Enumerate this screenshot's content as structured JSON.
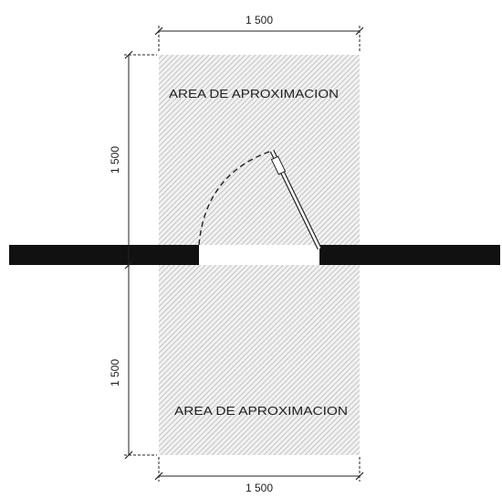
{
  "dimensions": {
    "top_width": "1 500",
    "bottom_width": "1 500",
    "upper_depth": "1 500",
    "lower_depth": "1 500"
  },
  "areas": {
    "upper_label": "AREA DE APROXIMACION",
    "lower_label": "AREA DE APROXIMACION"
  },
  "colors": {
    "wall": "#111111",
    "hatch": "#b8b8b8",
    "line": "#222222"
  }
}
